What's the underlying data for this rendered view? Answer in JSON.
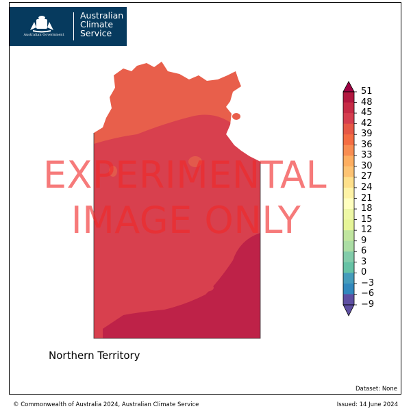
{
  "logo": {
    "government": "Australian Government",
    "service_lines": [
      "Australian",
      "Climate",
      "Service"
    ]
  },
  "watermark": [
    "EXPERIMENTAL",
    "IMAGE ONLY"
  ],
  "region_label": "Northern Territory",
  "dataset": "Dataset: None",
  "copyright": "© Commonwealth of Australia 2024, Australian Climate Service",
  "issued": "Issued: 14 June 2024",
  "colorbar": {
    "ticks": [
      "51",
      "48",
      "45",
      "42",
      "39",
      "36",
      "33",
      "30",
      "27",
      "24",
      "21",
      "18",
      "15",
      "12",
      "9",
      "6",
      "3",
      "0",
      "−3",
      "−6",
      "−9"
    ],
    "colors_top_to_bottom": [
      "#9e0142",
      "#b2173f",
      "#c62b46",
      "#d53e4f",
      "#e65846",
      "#f46d43",
      "#f88d52",
      "#fdae61",
      "#fdc373",
      "#fee08b",
      "#fef3a6",
      "#ffffbf",
      "#eef8a6",
      "#e6f598",
      "#c0e59f",
      "#abdda4",
      "#82ccaa",
      "#66c2a5",
      "#459cbb",
      "#3288bd",
      "#5e4fa2"
    ],
    "extend": "both"
  },
  "map_colors": {
    "north": "#e85f4b",
    "central": "#d8404e",
    "south": "#be2248",
    "border": "#333333"
  }
}
